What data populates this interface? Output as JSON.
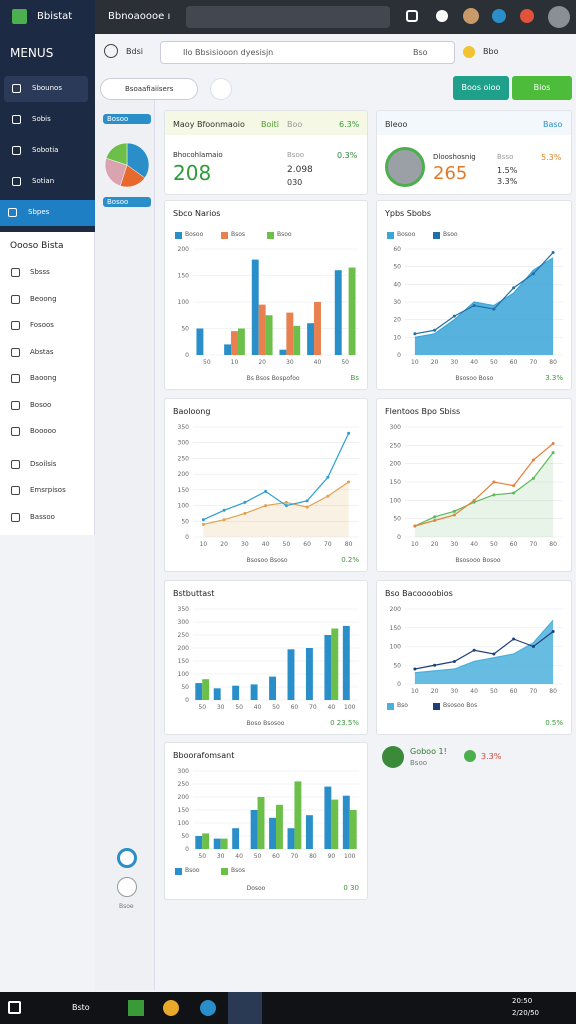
{
  "topbar": {
    "brand": "Bbistat",
    "title": "Bbnoaoooe ı"
  },
  "sidebar": {
    "heading": "MENUS",
    "items": [
      "Sbounos",
      "Sobis",
      "Sobotia",
      "Sotian",
      "Sbpes"
    ],
    "section": "Oooso Bista",
    "links": [
      "Sbsss",
      "Beoong",
      "Fosoos",
      "Abstas",
      "Baoong",
      "Bosoo",
      "Booooo",
      "Dsoilsis",
      "Emsrpisos",
      "Bassoo"
    ]
  },
  "toolbar": {
    "menu": "Bdsi",
    "search": "Ilo  Bbsisiooon dyesisjn",
    "search_hint": "Bso",
    "bio": "Bbo",
    "filter": "Bsoaafiaiisers",
    "buttons": [
      "Boos oioo",
      "Bios"
    ]
  },
  "side_panel": {
    "chips": [
      "Bosoo",
      "Bosoo"
    ],
    "pie": {
      "values": [
        35,
        20,
        25,
        20
      ],
      "colors": [
        "#2a8fc9",
        "#e8692e",
        "#d9a3b0",
        "#6cc04a"
      ]
    },
    "caption": "Bsoe"
  },
  "kpis": [
    {
      "title": "Maoy Bfoonmaoio",
      "tag": "Boiti",
      "tag2": "Boo",
      "change": "6.3%",
      "label": "Bhocohlamaio",
      "value": "208",
      "sub": "Bsoo",
      "figure": "2.098",
      "figure2": "030",
      "change2": "0.3%"
    },
    {
      "title": "Bleoo",
      "change": "Baso",
      "label": "Dlooshosnig",
      "value": "265",
      "sub": "Bsso",
      "figure": "1.5%",
      "figure2": "3.3%",
      "change2": "5.3%"
    }
  ],
  "charts": [
    {
      "type": "bar",
      "title": "Sbco Narios",
      "legend": "top",
      "categories": [
        "50",
        "10",
        "20",
        "30",
        "40",
        "50"
      ],
      "ylim": [
        0,
        200
      ],
      "yticks": [
        0,
        50,
        100,
        150,
        200
      ],
      "series": [
        {
          "name": "Bosoo",
          "color": "#2a8fc9",
          "values": [
            50,
            20,
            180,
            10,
            60,
            160
          ]
        },
        {
          "name": "Bsos",
          "color": "#e8804f",
          "values": [
            0,
            45,
            95,
            80,
            100,
            0
          ]
        },
        {
          "name": "Bsoo",
          "color": "#6cc04a",
          "values": [
            0,
            50,
            75,
            55,
            0,
            165
          ]
        }
      ],
      "footer": "Bs Bsos Bospofoo",
      "badge": "Bs"
    },
    {
      "type": "area",
      "title": "Ypbs Sbobs",
      "legend": "top",
      "categories": [
        "10",
        "20",
        "30",
        "40",
        "50",
        "60",
        "70",
        "80"
      ],
      "ylim": [
        0,
        60
      ],
      "yticks": [
        0,
        10,
        20,
        30,
        40,
        50,
        60
      ],
      "series": [
        {
          "name": "Bosoo",
          "color": "#3aa6d8",
          "fill": true,
          "values": [
            10,
            12,
            20,
            30,
            28,
            35,
            48,
            55
          ]
        },
        {
          "name": "Bsoo",
          "color": "#1f6fa8",
          "values": [
            12,
            14,
            22,
            28,
            26,
            38,
            46,
            58
          ]
        }
      ],
      "footer": "Bsosoo Boso",
      "badge": "3.3%"
    },
    {
      "type": "line",
      "title": "Baoloong",
      "legend": "none",
      "categories": [
        "10",
        "20",
        "30",
        "40",
        "50",
        "60",
        "70",
        "80"
      ],
      "ylim": [
        0,
        350
      ],
      "yticks": [
        0,
        50,
        100,
        150,
        200,
        250,
        300,
        350
      ],
      "series": [
        {
          "color": "#e0a050",
          "fill": true,
          "values": [
            40,
            55,
            75,
            100,
            110,
            95,
            130,
            175
          ]
        },
        {
          "color": "#2a9fd0",
          "values": [
            55,
            85,
            110,
            145,
            100,
            115,
            190,
            330
          ]
        }
      ],
      "footer": "Bsosoo Bsoso",
      "badge": "0.2%"
    },
    {
      "type": "line",
      "title": "Flentoos Bpo Sbiss",
      "legend": "none",
      "categories": [
        "10",
        "20",
        "30",
        "40",
        "50",
        "60",
        "70",
        "80"
      ],
      "ylim": [
        0,
        300
      ],
      "yticks": [
        0,
        50,
        100,
        150,
        200,
        250,
        300
      ],
      "series": [
        {
          "color": "#5cb85c",
          "fill": true,
          "values": [
            30,
            55,
            70,
            95,
            115,
            120,
            160,
            230
          ]
        },
        {
          "color": "#e8803a",
          "values": [
            30,
            45,
            60,
            100,
            150,
            140,
            210,
            255
          ]
        }
      ],
      "footer": "Bsosooo Bosoo",
      "badge": ""
    },
    {
      "type": "bar",
      "title": "Bstbuttast",
      "legend": "none",
      "categories": [
        "50",
        "30",
        "50",
        "40",
        "50",
        "60",
        "70",
        "40",
        "100"
      ],
      "ylim": [
        0,
        350
      ],
      "yticks": [
        0,
        50,
        100,
        150,
        200,
        250,
        300,
        350
      ],
      "series": [
        {
          "color": "#2a8fc9",
          "values": [
            65,
            45,
            55,
            60,
            90,
            195,
            200,
            250,
            285
          ]
        },
        {
          "color": "#6cc04a",
          "values": [
            80,
            0,
            0,
            0,
            0,
            0,
            0,
            275,
            0
          ]
        }
      ],
      "footer": "Boso Bsosoo",
      "badge": "0 23.5%"
    },
    {
      "type": "area",
      "title": "Bso Bacoooobios",
      "legend": "bottom",
      "categories": [
        "10",
        "20",
        "30",
        "40",
        "50",
        "60",
        "70",
        "80"
      ],
      "ylim": [
        0,
        200
      ],
      "yticks": [
        0,
        50,
        100,
        150,
        200
      ],
      "series": [
        {
          "name": "Bso",
          "color": "#4cb0dc",
          "fill": true,
          "values": [
            30,
            35,
            40,
            60,
            70,
            80,
            110,
            170
          ]
        },
        {
          "name": "Bsosoo Bos",
          "color": "#1f3f7a",
          "values": [
            40,
            50,
            60,
            90,
            80,
            120,
            100,
            140
          ]
        }
      ],
      "footer": "",
      "badge": "0.5%"
    },
    {
      "type": "bar",
      "title": "Bboorafomsant",
      "legend": "bottom",
      "categories": [
        "50",
        "30",
        "40",
        "50",
        "60",
        "70",
        "80",
        "90",
        "100"
      ],
      "ylim": [
        0,
        300
      ],
      "yticks": [
        0,
        50,
        100,
        150,
        200,
        250,
        300
      ],
      "series": [
        {
          "name": "Bsoo",
          "color": "#2a8fc9",
          "values": [
            50,
            40,
            80,
            150,
            120,
            80,
            130,
            240,
            205
          ]
        },
        {
          "name": "Bsos",
          "color": "#6cc04a",
          "values": [
            60,
            40,
            0,
            200,
            170,
            260,
            0,
            190,
            150
          ]
        }
      ],
      "footer": "Dosoo",
      "badge": "0 30"
    }
  ],
  "extras": {
    "name": "Goboo 1!",
    "sub": "Bsoo",
    "pct": "3.3%"
  },
  "taskbar": {
    "search": "Bsto",
    "time": "20:50",
    "date": "2/20/50"
  }
}
